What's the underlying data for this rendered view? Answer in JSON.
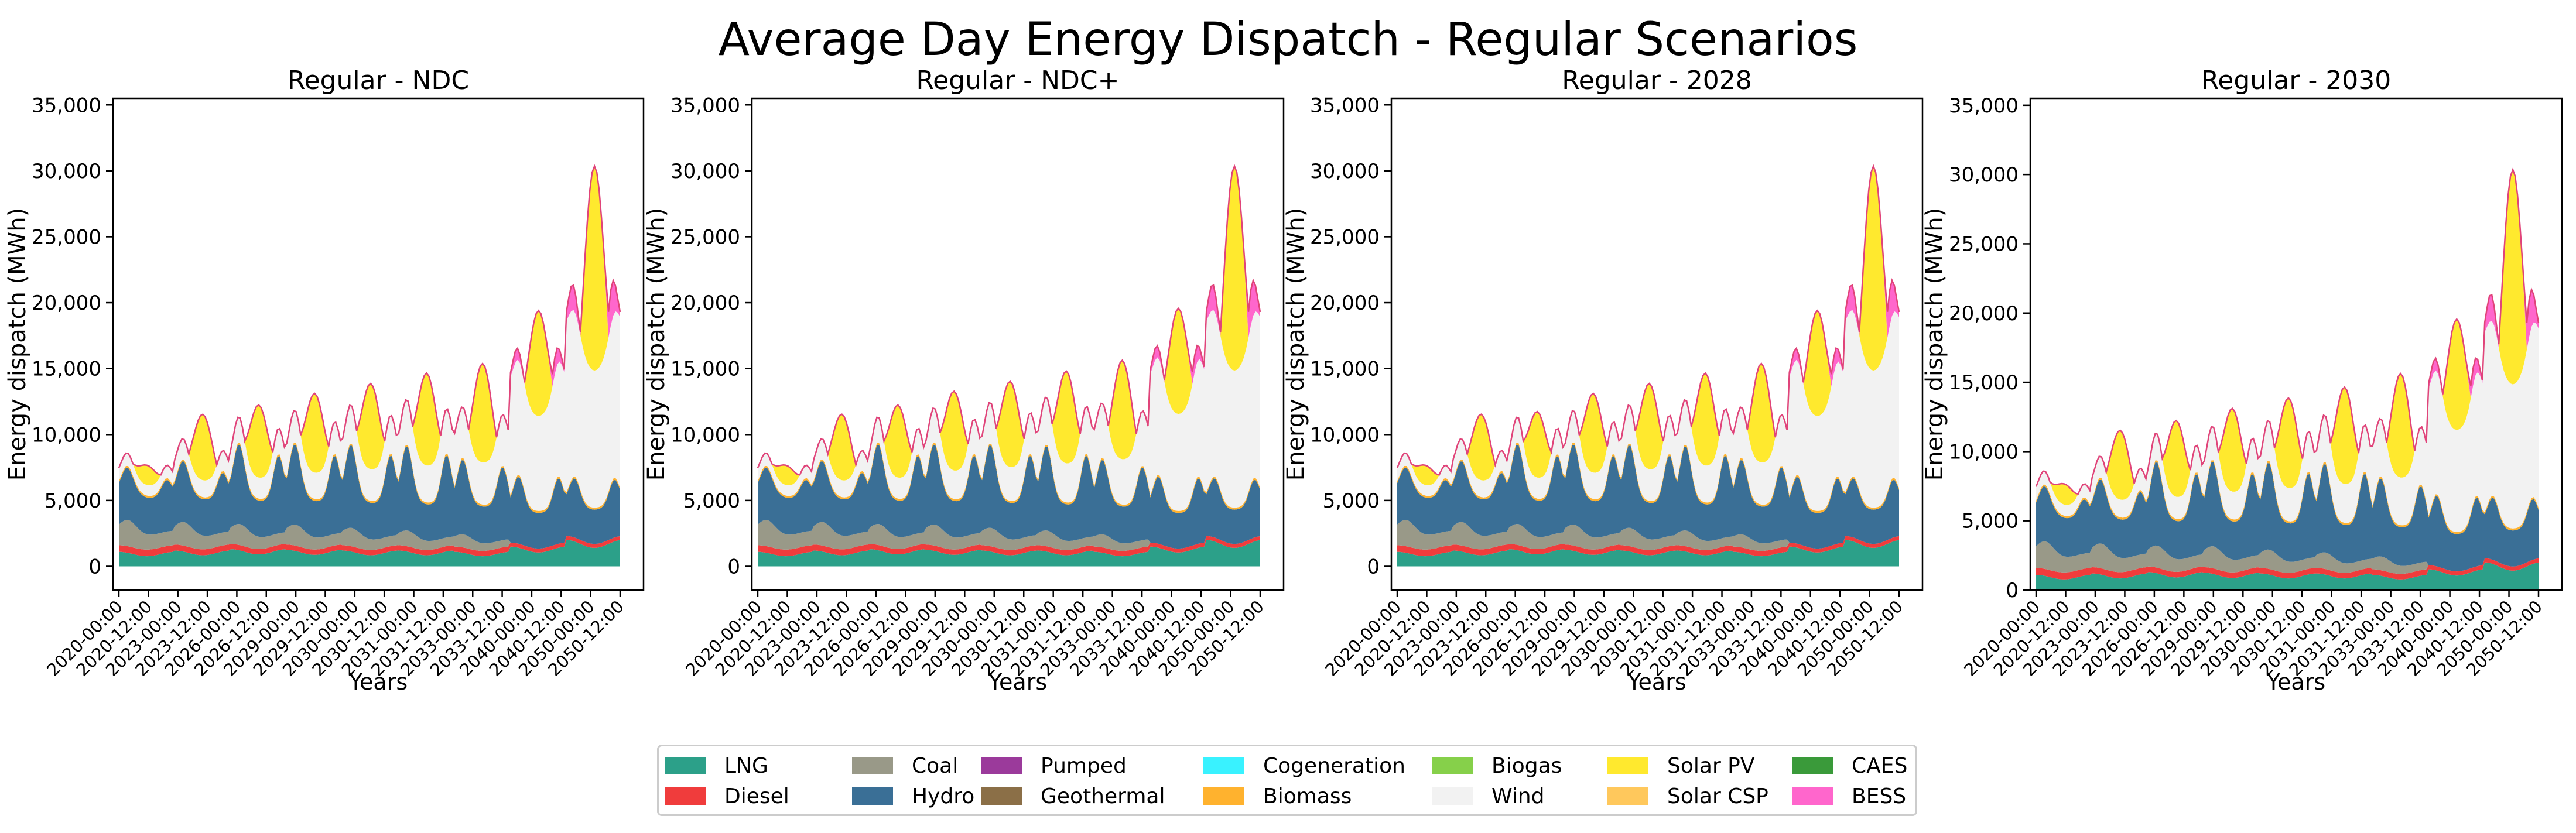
{
  "figure": {
    "title": "Average Day Energy Dispatch - Regular Scenarios"
  },
  "technologies": [
    {
      "name": "LNG",
      "color": "#2ca089"
    },
    {
      "name": "Diesel",
      "color": "#f03c3c"
    },
    {
      "name": "Coal",
      "color": "#999988"
    },
    {
      "name": "Hydro",
      "color": "#3a6f96"
    },
    {
      "name": "Pumped",
      "color": "#9b3a9b"
    },
    {
      "name": "Geothermal",
      "color": "#8b6f47"
    },
    {
      "name": "Cogeneration",
      "color": "#39f2ff"
    },
    {
      "name": "Biomass",
      "color": "#ffb22e"
    },
    {
      "name": "Biogas",
      "color": "#86d04a"
    },
    {
      "name": "Wind",
      "color": "#f2f2f2"
    },
    {
      "name": "Solar PV",
      "color": "#ffe92e"
    },
    {
      "name": "Solar CSP",
      "color": "#ffc85c"
    },
    {
      "name": "CAES",
      "color": "#3a9a3a"
    },
    {
      "name": "BESS",
      "color": "#ff66cc"
    }
  ],
  "chart_data": [
    {
      "type": "area",
      "title": "Regular - NDC",
      "xlabel": "Years",
      "ylabel": "Energy dispatch (MWh)",
      "ylim": [
        -1800,
        35500
      ],
      "yticks": [
        0,
        5000,
        10000,
        15000,
        20000,
        25000,
        30000,
        35000
      ],
      "ytick_labels": [
        "0",
        "5,000",
        "10,000",
        "15,000",
        "20,000",
        "25,000",
        "30,000",
        "35,000"
      ],
      "xtick_labels": [
        "2020-00:00",
        "2020-12:00",
        "2023-00:00",
        "2023-12:00",
        "2026-00:00",
        "2026-12:00",
        "2029-00:00",
        "2029-12:00",
        "2030-00:00",
        "2030-12:00",
        "2031-00:00",
        "2031-12:00",
        "2033-00:00",
        "2033-12:00",
        "2040-00:00",
        "2040-12:00",
        "2050-00:00",
        "2050-12:00"
      ],
      "blocks": [
        {
          "year": "2020",
          "lng": 1100,
          "diesel": 500,
          "coal": 2000,
          "hydro_peak": 7000,
          "hydro_min": 3000,
          "wind": 1000,
          "solar_pv": 1500,
          "bess": 0
        },
        {
          "year": "2023",
          "lng": 1200,
          "diesel": 450,
          "coal": 1800,
          "hydro_peak": 7600,
          "hydro_min": 3000,
          "wind": 1600,
          "solar_pv": 5000,
          "bess": 0
        },
        {
          "year": "2026",
          "lng": 1300,
          "diesel": 400,
          "coal": 1600,
          "hydro_peak": 9000,
          "hydro_min": 3000,
          "wind": 2000,
          "solar_pv": 5500,
          "bess": 0
        },
        {
          "year": "2029",
          "lng": 1250,
          "diesel": 400,
          "coal": 1600,
          "hydro_peak": 9000,
          "hydro_min": 3000,
          "wind": 2500,
          "solar_pv": 6000,
          "bess": 0
        },
        {
          "year": "2030",
          "lng": 1200,
          "diesel": 400,
          "coal": 1400,
          "hydro_peak": 9000,
          "hydro_min": 3000,
          "wind": 3000,
          "solar_pv": 6500,
          "bess": 0
        },
        {
          "year": "2031",
          "lng": 1200,
          "diesel": 400,
          "coal": 1200,
          "hydro_peak": 9000,
          "hydro_min": 3000,
          "wind": 3500,
          "solar_pv": 7000,
          "bess": 0
        },
        {
          "year": "2033",
          "lng": 1100,
          "diesel": 400,
          "coal": 1000,
          "hydro_peak": 8000,
          "hydro_min": 3000,
          "wind": 4000,
          "solar_pv": 7500,
          "bess": 0
        },
        {
          "year": "2040",
          "lng": 1500,
          "diesel": 300,
          "coal": 0,
          "hydro_peak": 7200,
          "hydro_min": 3000,
          "wind": 9000,
          "solar_pv": 8000,
          "bess": 1300
        },
        {
          "year": "2050",
          "lng": 2000,
          "diesel": 300,
          "coal": 0,
          "hydro_peak": 7200,
          "hydro_min": 3000,
          "wind": 13000,
          "solar_pv": 15500,
          "bess": 2800
        }
      ]
    },
    {
      "type": "area",
      "title": "Regular - NDC+",
      "xlabel": "Years",
      "ylabel": "Energy dispatch (MWh)",
      "ylim": [
        -1800,
        35500
      ],
      "yticks": [
        0,
        5000,
        10000,
        15000,
        20000,
        25000,
        30000,
        35000
      ],
      "ytick_labels": [
        "0",
        "5,000",
        "10,000",
        "15,000",
        "20,000",
        "25,000",
        "30,000",
        "35,000"
      ],
      "xtick_labels": [
        "2020-00:00",
        "2020-12:00",
        "2023-00:00",
        "2023-12:00",
        "2026-00:00",
        "2026-12:00",
        "2029-00:00",
        "2029-12:00",
        "2030-00:00",
        "2030-12:00",
        "2031-00:00",
        "2031-12:00",
        "2033-00:00",
        "2033-12:00",
        "2040-00:00",
        "2040-12:00",
        "2050-00:00",
        "2050-12:00"
      ],
      "blocks": [
        {
          "year": "2020",
          "lng": 1100,
          "diesel": 500,
          "coal": 2000,
          "hydro_peak": 7000,
          "hydro_min": 3000,
          "wind": 1000,
          "solar_pv": 1500,
          "bess": 0
        },
        {
          "year": "2023",
          "lng": 1200,
          "diesel": 450,
          "coal": 1800,
          "hydro_peak": 7600,
          "hydro_min": 3000,
          "wind": 1600,
          "solar_pv": 5000,
          "bess": 0
        },
        {
          "year": "2026",
          "lng": 1300,
          "diesel": 400,
          "coal": 1600,
          "hydro_peak": 9000,
          "hydro_min": 3000,
          "wind": 2000,
          "solar_pv": 5500,
          "bess": 0
        },
        {
          "year": "2029",
          "lng": 1250,
          "diesel": 400,
          "coal": 1600,
          "hydro_peak": 9000,
          "hydro_min": 3000,
          "wind": 2700,
          "solar_pv": 6000,
          "bess": 0
        },
        {
          "year": "2030",
          "lng": 1200,
          "diesel": 400,
          "coal": 1400,
          "hydro_peak": 9000,
          "hydro_min": 3000,
          "wind": 3200,
          "solar_pv": 6500,
          "bess": 0
        },
        {
          "year": "2031",
          "lng": 1200,
          "diesel": 400,
          "coal": 1200,
          "hydro_peak": 9000,
          "hydro_min": 3000,
          "wind": 3700,
          "solar_pv": 7000,
          "bess": 0
        },
        {
          "year": "2033",
          "lng": 1100,
          "diesel": 400,
          "coal": 1000,
          "hydro_peak": 8000,
          "hydro_min": 3000,
          "wind": 4300,
          "solar_pv": 7500,
          "bess": 0
        },
        {
          "year": "2040",
          "lng": 1500,
          "diesel": 300,
          "coal": 0,
          "hydro_peak": 7200,
          "hydro_min": 3000,
          "wind": 9200,
          "solar_pv": 8000,
          "bess": 1300
        },
        {
          "year": "2050",
          "lng": 2000,
          "diesel": 300,
          "coal": 0,
          "hydro_peak": 7200,
          "hydro_min": 3000,
          "wind": 13000,
          "solar_pv": 15500,
          "bess": 2800
        }
      ]
    },
    {
      "type": "area",
      "title": "Regular - 2028",
      "xlabel": "Years",
      "ylabel": "Energy dispatch (MWh)",
      "ylim": [
        -1800,
        35500
      ],
      "yticks": [
        0,
        5000,
        10000,
        15000,
        20000,
        25000,
        30000,
        35000
      ],
      "ytick_labels": [
        "0",
        "5,000",
        "10,000",
        "15,000",
        "20,000",
        "25,000",
        "30,000",
        "35,000"
      ],
      "xtick_labels": [
        "2020-00:00",
        "2020-12:00",
        "2023-00:00",
        "2023-12:00",
        "2026-00:00",
        "2026-12:00",
        "2029-00:00",
        "2029-12:00",
        "2030-00:00",
        "2030-12:00",
        "2031-00:00",
        "2031-12:00",
        "2033-00:00",
        "2033-12:00",
        "2040-00:00",
        "2040-12:00",
        "2050-00:00",
        "2050-12:00"
      ],
      "blocks": [
        {
          "year": "2020",
          "lng": 1100,
          "diesel": 500,
          "coal": 2000,
          "hydro_peak": 7000,
          "hydro_min": 3000,
          "wind": 1000,
          "solar_pv": 1500,
          "bess": 0
        },
        {
          "year": "2023",
          "lng": 1200,
          "diesel": 450,
          "coal": 1800,
          "hydro_peak": 7600,
          "hydro_min": 3000,
          "wind": 1600,
          "solar_pv": 5000,
          "bess": 0
        },
        {
          "year": "2026",
          "lng": 1300,
          "diesel": 400,
          "coal": 1600,
          "hydro_peak": 9000,
          "hydro_min": 3000,
          "wind": 2000,
          "solar_pv": 5000,
          "bess": 0
        },
        {
          "year": "2029",
          "lng": 1250,
          "diesel": 400,
          "coal": 1600,
          "hydro_peak": 9000,
          "hydro_min": 3000,
          "wind": 2500,
          "solar_pv": 6000,
          "bess": 0
        },
        {
          "year": "2030",
          "lng": 1200,
          "diesel": 400,
          "coal": 1400,
          "hydro_peak": 9000,
          "hydro_min": 3000,
          "wind": 3000,
          "solar_pv": 6500,
          "bess": 0
        },
        {
          "year": "2031",
          "lng": 1200,
          "diesel": 400,
          "coal": 1200,
          "hydro_peak": 9000,
          "hydro_min": 3000,
          "wind": 3500,
          "solar_pv": 7000,
          "bess": 0
        },
        {
          "year": "2033",
          "lng": 1100,
          "diesel": 400,
          "coal": 1000,
          "hydro_peak": 8000,
          "hydro_min": 3000,
          "wind": 4000,
          "solar_pv": 7500,
          "bess": 0
        },
        {
          "year": "2040",
          "lng": 1500,
          "diesel": 300,
          "coal": 0,
          "hydro_peak": 7200,
          "hydro_min": 3000,
          "wind": 9000,
          "solar_pv": 8000,
          "bess": 1300
        },
        {
          "year": "2050",
          "lng": 2000,
          "diesel": 300,
          "coal": 0,
          "hydro_peak": 7200,
          "hydro_min": 3000,
          "wind": 13000,
          "solar_pv": 15500,
          "bess": 2800
        }
      ]
    },
    {
      "type": "area",
      "title": "Regular - 2030",
      "xlabel": "Years",
      "ylabel": "Energy dispatch (MWh)",
      "ylim": [
        0,
        35500
      ],
      "yticks": [
        0,
        5000,
        10000,
        15000,
        20000,
        25000,
        30000,
        35000
      ],
      "ytick_labels": [
        "0",
        "5,000",
        "10,000",
        "15,000",
        "20,000",
        "25,000",
        "30,000",
        "35,000"
      ],
      "xtick_labels": [
        "2020-00:00",
        "2020-12:00",
        "2023-00:00",
        "2023-12:00",
        "2026-00:00",
        "2026-12:00",
        "2029-00:00",
        "2029-12:00",
        "2030-00:00",
        "2030-12:00",
        "2031-00:00",
        "2031-12:00",
        "2033-00:00",
        "2033-12:00",
        "2040-00:00",
        "2040-12:00",
        "2050-00:00",
        "2050-12:00"
      ],
      "blocks": [
        {
          "year": "2020",
          "lng": 1100,
          "diesel": 500,
          "coal": 2000,
          "hydro_peak": 7000,
          "hydro_min": 3000,
          "wind": 1000,
          "solar_pv": 1500,
          "bess": 0
        },
        {
          "year": "2023",
          "lng": 1200,
          "diesel": 450,
          "coal": 1800,
          "hydro_peak": 7600,
          "hydro_min": 3000,
          "wind": 1600,
          "solar_pv": 5000,
          "bess": 0
        },
        {
          "year": "2026",
          "lng": 1300,
          "diesel": 400,
          "coal": 1600,
          "hydro_peak": 9000,
          "hydro_min": 3000,
          "wind": 2000,
          "solar_pv": 5500,
          "bess": 0
        },
        {
          "year": "2029",
          "lng": 1250,
          "diesel": 400,
          "coal": 1600,
          "hydro_peak": 9000,
          "hydro_min": 3000,
          "wind": 2500,
          "solar_pv": 6000,
          "bess": 0
        },
        {
          "year": "2030",
          "lng": 1200,
          "diesel": 400,
          "coal": 1400,
          "hydro_peak": 9000,
          "hydro_min": 3000,
          "wind": 3000,
          "solar_pv": 6500,
          "bess": 0
        },
        {
          "year": "2031",
          "lng": 1200,
          "diesel": 400,
          "coal": 1200,
          "hydro_peak": 9000,
          "hydro_min": 3000,
          "wind": 3500,
          "solar_pv": 7000,
          "bess": 0
        },
        {
          "year": "2033",
          "lng": 1100,
          "diesel": 400,
          "coal": 1000,
          "hydro_peak": 8000,
          "hydro_min": 3000,
          "wind": 4300,
          "solar_pv": 7500,
          "bess": 0
        },
        {
          "year": "2040",
          "lng": 1500,
          "diesel": 300,
          "coal": 0,
          "hydro_peak": 7200,
          "hydro_min": 3000,
          "wind": 9200,
          "solar_pv": 8000,
          "bess": 1300
        },
        {
          "year": "2050",
          "lng": 2000,
          "diesel": 300,
          "coal": 0,
          "hydro_peak": 7200,
          "hydro_min": 3000,
          "wind": 13000,
          "solar_pv": 15500,
          "bess": 2800
        }
      ]
    }
  ]
}
